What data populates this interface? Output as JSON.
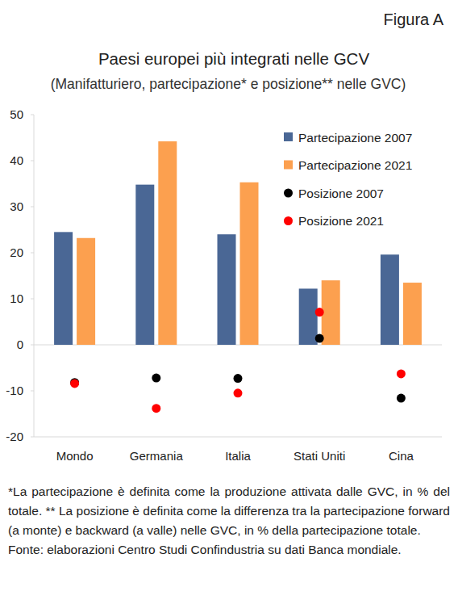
{
  "header": {
    "label": "Figura A"
  },
  "chart_data": {
    "type": "bar",
    "title": "Paesi europei più integrati nelle GCV",
    "subtitle": "(Manifatturiero, partecipazione* e posizione** nelle GVC)",
    "categories": [
      "Mondo",
      "Germania",
      "Italia",
      "Stati Uniti",
      "Cina"
    ],
    "series": [
      {
        "name": "Partecipazione 2007",
        "type": "bar",
        "color": "#4a6795",
        "values": [
          24.5,
          34.8,
          24.0,
          12.2,
          19.6
        ]
      },
      {
        "name": "Partecipazione 2021",
        "type": "bar",
        "color": "#fca04f",
        "values": [
          23.2,
          44.2,
          35.3,
          14.0,
          13.5
        ]
      },
      {
        "name": "Posizione 2007",
        "type": "scatter",
        "marker": "circle",
        "color": "#000000",
        "values": [
          -8.2,
          -7.2,
          -7.3,
          1.4,
          -11.6
        ]
      },
      {
        "name": "Posizione 2021",
        "type": "scatter",
        "marker": "circle",
        "color": "#ff0000",
        "values": [
          -8.4,
          -13.8,
          -10.5,
          7.1,
          -6.3
        ]
      }
    ],
    "ylim": [
      -20,
      50
    ],
    "yticks": [
      -20,
      -10,
      0,
      10,
      20,
      30,
      40,
      50
    ],
    "grid": false,
    "legend": "upper right"
  },
  "notes": [
    "*La partecipazione è definita come la produzione attivata dalle GVC, in % del totale. ** La posizione è definita come la differenza tra la partecipazione forward (a monte) e backward (a valle) nelle GVC, in % della partecipazione totale.",
    "Fonte: elaborazioni Centro Studi Confindustria su dati Banca mondiale."
  ]
}
